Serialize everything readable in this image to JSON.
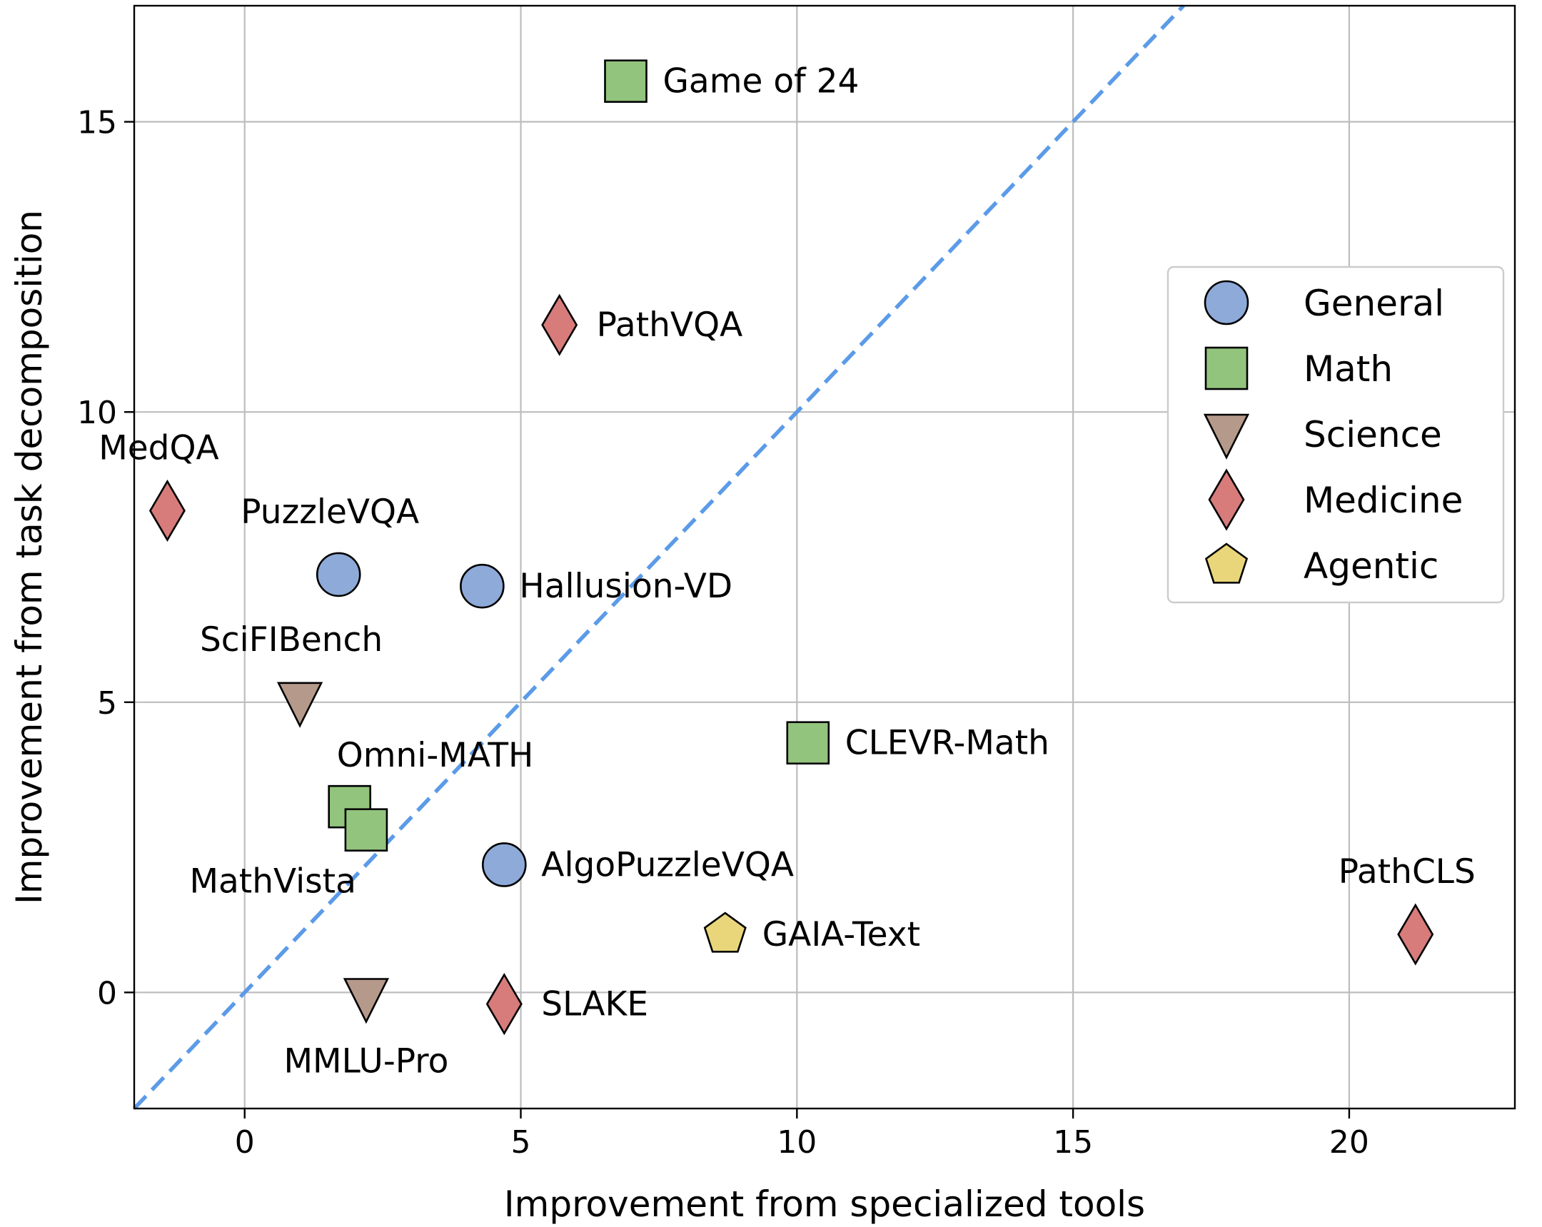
{
  "chart_data": {
    "type": "scatter",
    "xlabel": "Improvement from specialized tools",
    "ylabel": "Improvement from task decomposition",
    "xlim": [
      -2,
      23
    ],
    "ylim": [
      -2,
      17
    ],
    "xticks": [
      0,
      5,
      10,
      15,
      20
    ],
    "yticks": [
      0,
      5,
      10,
      15
    ],
    "grid": true,
    "reference_line": {
      "type": "y=x",
      "style": "dashed",
      "color": "#5b9be8"
    },
    "legend": {
      "placement": "center-right",
      "entries": [
        {
          "name": "General",
          "marker": "circle",
          "color": "#8eaad9"
        },
        {
          "name": "Math",
          "marker": "square",
          "color": "#93c47d"
        },
        {
          "name": "Science",
          "marker": "triangle-down",
          "color": "#b5998a"
        },
        {
          "name": "Medicine",
          "marker": "diamond",
          "color": "#d77b7b"
        },
        {
          "name": "Agentic",
          "marker": "pentagon",
          "color": "#ead67a"
        }
      ]
    },
    "points": [
      {
        "label": "Game of 24",
        "category": "Math",
        "x": 6.9,
        "y": 15.7,
        "label_pos": "right"
      },
      {
        "label": "PathVQA",
        "category": "Medicine",
        "x": 5.7,
        "y": 11.5,
        "label_pos": "right"
      },
      {
        "label": "MedQA",
        "category": "Medicine",
        "x": -1.4,
        "y": 8.3,
        "label_pos": "above"
      },
      {
        "label": "PuzzleVQA",
        "category": "General",
        "x": 1.7,
        "y": 7.2,
        "label_pos": "above"
      },
      {
        "label": "Hallusion-VD",
        "category": "General",
        "x": 4.3,
        "y": 7.0,
        "label_pos": "right"
      },
      {
        "label": "SciFIBench",
        "category": "Science",
        "x": 1.0,
        "y": 5.0,
        "label_pos": "above"
      },
      {
        "label": "CLEVR-Math",
        "category": "Math",
        "x": 10.2,
        "y": 4.3,
        "label_pos": "right"
      },
      {
        "label": "Omni-MATH",
        "category": "Math",
        "x": 1.9,
        "y": 3.2,
        "label_pos": "above-right"
      },
      {
        "label": "MathVista",
        "category": "Math",
        "x": 2.2,
        "y": 2.8,
        "label_pos": "below-left"
      },
      {
        "label": "AlgoPuzzleVQA",
        "category": "General",
        "x": 4.7,
        "y": 2.2,
        "label_pos": "right"
      },
      {
        "label": "PathCLS",
        "category": "Medicine",
        "x": 21.2,
        "y": 1.0,
        "label_pos": "above"
      },
      {
        "label": "GAIA-Text",
        "category": "Agentic",
        "x": 8.7,
        "y": 1.0,
        "label_pos": "right"
      },
      {
        "label": "MMLU-Pro",
        "category": "Science",
        "x": 2.2,
        "y": -0.1,
        "label_pos": "below"
      },
      {
        "label": "SLAKE",
        "category": "Medicine",
        "x": 4.7,
        "y": -0.2,
        "label_pos": "right"
      }
    ]
  }
}
